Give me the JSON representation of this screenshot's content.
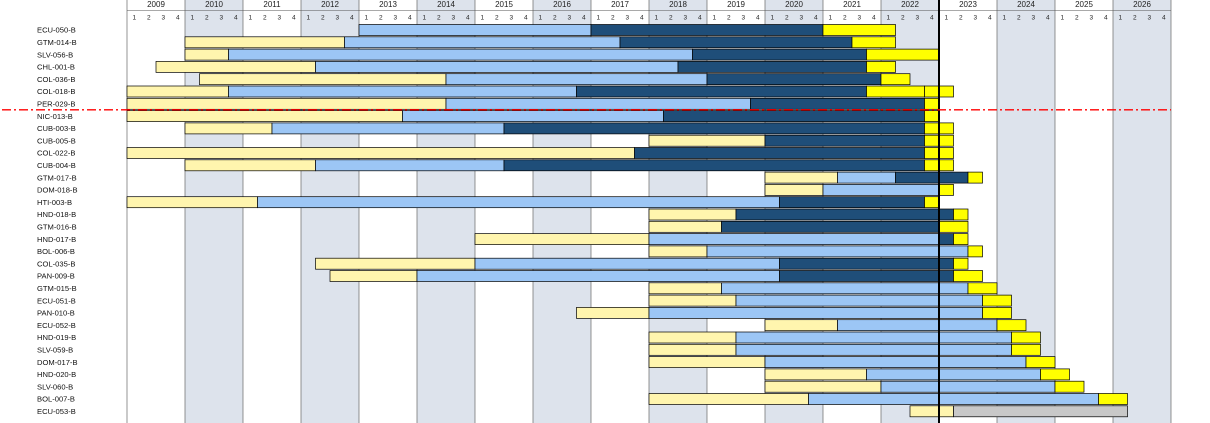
{
  "chart_data": {
    "type": "gantt",
    "title": "",
    "xlabel": "",
    "ylabel": "",
    "years": [
      "2009",
      "2010",
      "2011",
      "2012",
      "2013",
      "2014",
      "2015",
      "2016",
      "2017",
      "2018",
      "2019",
      "2020",
      "2021",
      "2022",
      "2023",
      "2024",
      "2025",
      "2026"
    ],
    "quarters": [
      "1",
      "2",
      "3",
      "4"
    ],
    "highlight_year": "2022",
    "current_date_marker": "2023-Q1 start",
    "cutoff_line_after_row": "PER-029-B",
    "colors": {
      "phase1": "#fff5ae",
      "phase2": "#9cc6f5",
      "phase3": "#1f4e79",
      "phase4": "#ffff00",
      "phase5": "#c8c8c8",
      "year_band_shade": "#dde3ec",
      "highlight_year_text": "#ff0000",
      "cutoff_line": "#ff0000"
    },
    "phase_note": "segments: [phase, start_quarter_index, end_quarter_index] with index 0 = 2009-Q1 start",
    "projects": [
      {
        "name": "ECU-050-B",
        "segments": [
          [
            2,
            16,
            32
          ],
          [
            3,
            32,
            48
          ],
          [
            4,
            48,
            53
          ]
        ]
      },
      {
        "name": "GTM-014-B",
        "segments": [
          [
            1,
            4,
            15
          ],
          [
            2,
            15,
            34
          ],
          [
            3,
            34,
            50
          ],
          [
            4,
            50,
            53
          ]
        ]
      },
      {
        "name": "SLV-056-B",
        "segments": [
          [
            1,
            4,
            7
          ],
          [
            2,
            7,
            39
          ],
          [
            3,
            39,
            51
          ],
          [
            4,
            51,
            56
          ]
        ]
      },
      {
        "name": "CHL-001-B",
        "segments": [
          [
            1,
            2,
            13
          ],
          [
            2,
            13,
            38
          ],
          [
            3,
            38,
            51
          ],
          [
            4,
            51,
            53
          ]
        ]
      },
      {
        "name": "COL-036-B",
        "segments": [
          [
            1,
            5,
            22
          ],
          [
            2,
            22,
            40
          ],
          [
            3,
            40,
            52
          ],
          [
            4,
            52,
            54
          ]
        ]
      },
      {
        "name": "COL-018-B",
        "segments": [
          [
            1,
            0,
            7
          ],
          [
            2,
            7,
            31
          ],
          [
            3,
            31,
            51
          ],
          [
            4,
            51,
            55
          ],
          [
            4,
            55,
            57
          ]
        ]
      },
      {
        "name": "PER-029-B",
        "segments": [
          [
            1,
            0,
            22
          ],
          [
            2,
            22,
            43
          ],
          [
            3,
            43,
            55
          ],
          [
            4,
            55,
            56
          ]
        ]
      },
      {
        "name": "NIC-013-B",
        "segments": [
          [
            1,
            0,
            19
          ],
          [
            2,
            19,
            37
          ],
          [
            3,
            37,
            55
          ],
          [
            4,
            55,
            56
          ]
        ]
      },
      {
        "name": "CUB-003-B",
        "segments": [
          [
            1,
            4,
            10
          ],
          [
            2,
            10,
            26
          ],
          [
            3,
            26,
            55
          ],
          [
            4,
            55,
            57
          ]
        ]
      },
      {
        "name": "CUB-005-B",
        "segments": [
          [
            1,
            36,
            44
          ],
          [
            3,
            44,
            55
          ],
          [
            4,
            55,
            57
          ]
        ]
      },
      {
        "name": "COL-022-B",
        "segments": [
          [
            1,
            0,
            35
          ],
          [
            3,
            35,
            55
          ],
          [
            4,
            55,
            57
          ]
        ]
      },
      {
        "name": "CUB-004-B",
        "segments": [
          [
            1,
            4,
            13
          ],
          [
            2,
            13,
            26
          ],
          [
            3,
            26,
            55
          ],
          [
            4,
            55,
            57
          ]
        ]
      },
      {
        "name": "GTM-017-B",
        "segments": [
          [
            1,
            44,
            49
          ],
          [
            2,
            49,
            53
          ],
          [
            3,
            53,
            58
          ],
          [
            4,
            58,
            59
          ]
        ]
      },
      {
        "name": "DOM-018-B",
        "segments": [
          [
            1,
            44,
            48
          ],
          [
            2,
            48,
            56
          ],
          [
            4,
            56,
            57
          ]
        ]
      },
      {
        "name": "HTI-003-B",
        "segments": [
          [
            1,
            0,
            9
          ],
          [
            2,
            9,
            45
          ],
          [
            3,
            45,
            55
          ],
          [
            4,
            55,
            56
          ]
        ]
      },
      {
        "name": "HND-018-B",
        "segments": [
          [
            1,
            36,
            42
          ],
          [
            3,
            42,
            57
          ],
          [
            4,
            57,
            58
          ]
        ]
      },
      {
        "name": "GTM-016-B",
        "segments": [
          [
            1,
            36,
            41
          ],
          [
            3,
            41,
            56
          ],
          [
            4,
            56,
            58
          ]
        ]
      },
      {
        "name": "HND-017-B",
        "segments": [
          [
            1,
            24,
            36
          ],
          [
            2,
            36,
            56
          ],
          [
            3,
            56,
            57
          ],
          [
            4,
            57,
            58
          ]
        ]
      },
      {
        "name": "BOL-006-B",
        "segments": [
          [
            1,
            36,
            40
          ],
          [
            2,
            40,
            58
          ],
          [
            4,
            58,
            59
          ]
        ]
      },
      {
        "name": "COL-035-B",
        "segments": [
          [
            1,
            13,
            24
          ],
          [
            2,
            24,
            45
          ],
          [
            3,
            45,
            57
          ],
          [
            4,
            57,
            58
          ]
        ]
      },
      {
        "name": "PAN-009-B",
        "segments": [
          [
            1,
            14,
            20
          ],
          [
            2,
            20,
            45
          ],
          [
            3,
            45,
            57
          ],
          [
            4,
            57,
            59
          ]
        ]
      },
      {
        "name": "GTM-015-B",
        "segments": [
          [
            1,
            36,
            41
          ],
          [
            2,
            41,
            58
          ],
          [
            4,
            58,
            60
          ]
        ]
      },
      {
        "name": "ECU-051-B",
        "segments": [
          [
            1,
            36,
            42
          ],
          [
            2,
            42,
            59
          ],
          [
            4,
            59,
            61
          ]
        ]
      },
      {
        "name": "PAN-010-B",
        "segments": [
          [
            1,
            31,
            36
          ],
          [
            2,
            36,
            59
          ],
          [
            4,
            59,
            61
          ]
        ]
      },
      {
        "name": "ECU-052-B",
        "segments": [
          [
            1,
            44,
            49
          ],
          [
            2,
            49,
            60
          ],
          [
            4,
            60,
            62
          ]
        ]
      },
      {
        "name": "HND-019-B",
        "segments": [
          [
            1,
            36,
            42
          ],
          [
            2,
            42,
            61
          ],
          [
            4,
            61,
            63
          ]
        ]
      },
      {
        "name": "SLV-059-B",
        "segments": [
          [
            1,
            36,
            42
          ],
          [
            2,
            42,
            61
          ],
          [
            4,
            61,
            63
          ]
        ]
      },
      {
        "name": "DOM-017-B",
        "segments": [
          [
            1,
            36,
            44
          ],
          [
            2,
            44,
            62
          ],
          [
            4,
            62,
            64
          ]
        ]
      },
      {
        "name": "HND-020-B",
        "segments": [
          [
            1,
            44,
            51
          ],
          [
            2,
            51,
            63
          ],
          [
            4,
            63,
            65
          ]
        ]
      },
      {
        "name": "SLV-060-B",
        "segments": [
          [
            1,
            44,
            52
          ],
          [
            2,
            52,
            64
          ],
          [
            4,
            64,
            66
          ]
        ]
      },
      {
        "name": "BOL-007-B",
        "segments": [
          [
            1,
            36,
            47
          ],
          [
            2,
            47,
            67
          ],
          [
            4,
            67,
            69
          ]
        ]
      },
      {
        "name": "ECU-053-B",
        "segments": [
          [
            1,
            54,
            57
          ],
          [
            5,
            57,
            69
          ]
        ]
      }
    ]
  }
}
